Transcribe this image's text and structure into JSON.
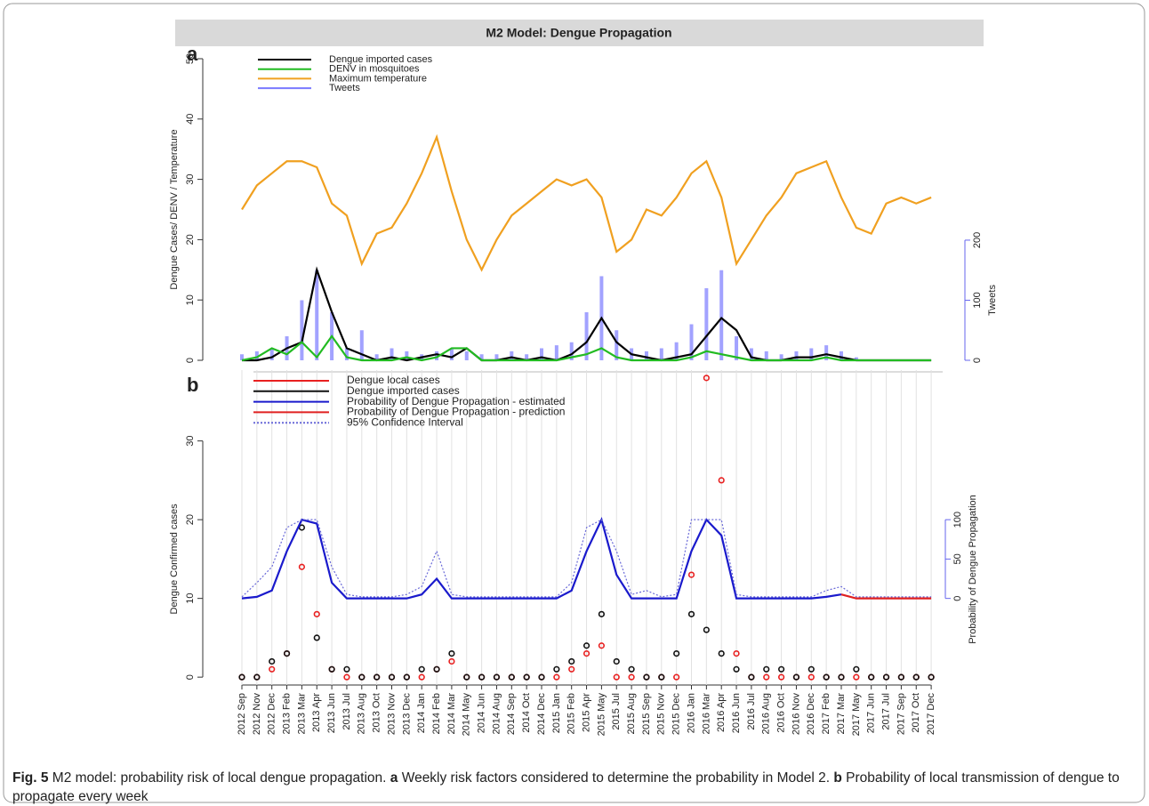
{
  "title": "M2 Model: Dengue Propagation",
  "caption": {
    "label": "Fig. 5",
    "title": "M2 model: probability risk of local dengue propagation.",
    "a": "a",
    "a_text": "Weekly risk factors considered to determine the probability in Model 2.",
    "b": "b",
    "b_text": "Probability of local transmission of dengue to propagate every week"
  },
  "chart_data": [
    {
      "type": "line",
      "label": "a",
      "ylabel": "Dengue Cases/ DENV / Temperature",
      "y2label": "Tweets",
      "ylim": [
        0,
        50
      ],
      "yticks": [
        0,
        10,
        20,
        30,
        40,
        50
      ],
      "y2lim": [
        0,
        502
      ],
      "y2ticks": [
        0,
        100,
        200
      ],
      "series": [
        {
          "name": "Dengue imported cases",
          "type": "line",
          "color": "#000000",
          "values": [
            0,
            0,
            0.5,
            2,
            3,
            15,
            8,
            2,
            1,
            0,
            0.5,
            0,
            0.5,
            1,
            0.5,
            2,
            0,
            0,
            0.5,
            0,
            0.5,
            0,
            1,
            3,
            7,
            3,
            1,
            0.5,
            0,
            0.5,
            1,
            4,
            7,
            5,
            0.5,
            0,
            0,
            0.5,
            0.5,
            1,
            0.5,
            0,
            0,
            0,
            0,
            0,
            0
          ]
        },
        {
          "name": "DENV in mosquitoes",
          "type": "line",
          "color": "#22bb22",
          "values": [
            0,
            0.5,
            2,
            1,
            3,
            0.5,
            4,
            0.5,
            0,
            0,
            0,
            0.5,
            0,
            0.5,
            2,
            2,
            0,
            0,
            0,
            0,
            0,
            0,
            0.5,
            1,
            2,
            0.5,
            0,
            0,
            0,
            0,
            0.5,
            1.5,
            1,
            0.5,
            0,
            0,
            0,
            0,
            0,
            0.5,
            0,
            0,
            0,
            0,
            0,
            0,
            0
          ]
        },
        {
          "name": "Maximum temperature",
          "type": "line",
          "color": "#f0a020",
          "values": [
            25,
            29,
            31,
            33,
            33,
            32,
            26,
            24,
            16,
            21,
            22,
            26,
            31,
            37,
            28,
            20,
            15,
            20,
            24,
            26,
            28,
            30,
            29,
            30,
            27,
            18,
            20,
            25,
            24,
            27,
            31,
            33,
            27,
            16,
            20,
            24,
            27,
            31,
            32,
            33,
            27,
            22,
            21,
            26,
            27,
            26,
            27
          ]
        },
        {
          "name": "Tweets",
          "type": "bar",
          "axis": "y2",
          "color": "#7a7aff",
          "values": [
            10,
            15,
            20,
            40,
            100,
            150,
            80,
            20,
            50,
            10,
            20,
            15,
            10,
            15,
            20,
            15,
            10,
            10,
            15,
            10,
            20,
            25,
            30,
            80,
            140,
            50,
            20,
            15,
            20,
            30,
            60,
            120,
            150,
            40,
            20,
            15,
            10,
            15,
            20,
            25,
            15,
            5,
            0,
            0,
            0,
            0,
            0
          ]
        }
      ]
    },
    {
      "type": "line",
      "label": "b",
      "ylabel": "Dengue Confirmed cases",
      "y2label": "Probability of Dengue Propagation",
      "ylim": [
        -1,
        39
      ],
      "yticks": [
        0,
        10,
        20,
        30
      ],
      "y2lim": [
        -110,
        290
      ],
      "y2ticks": [
        0,
        50,
        100
      ],
      "grid": true,
      "categories": [
        "2012 Sep",
        "2012 Nov",
        "2012 Dec",
        "2013 Feb",
        "2013 Mar",
        "2013 Apr",
        "2013 Jun",
        "2013 Jul",
        "2013 Aug",
        "2013 Oct",
        "2013 Nov",
        "2013 Dec",
        "2014 Jan",
        "2014 Feb",
        "2014 Mar",
        "2014 May",
        "2014 Jun",
        "2014 Aug",
        "2014 Sep",
        "2014 Oct",
        "2014 Dec",
        "2015 Jan",
        "2015 Feb",
        "2015 Apr",
        "2015 May",
        "2015 Jul",
        "2015 Aug",
        "2015 Sep",
        "2015 Nov",
        "2015 Dec",
        "2016 Jan",
        "2016 Mar",
        "2016 Apr",
        "2016 Jun",
        "2016 Jul",
        "2016 Aug",
        "2016 Oct",
        "2016 Nov",
        "2016 Dec",
        "2017 Feb",
        "2017 Mar",
        "2017 May",
        "2017 Jun",
        "2017 Jul",
        "2017 Sep",
        "2017 Oct",
        "2017 Dec"
      ],
      "series": [
        {
          "name": "Dengue local cases",
          "type": "points",
          "color": "#e82020",
          "values": [
            0,
            0,
            1,
            3,
            14,
            8,
            1,
            0,
            0,
            0,
            0,
            0,
            0,
            1,
            2,
            0,
            0,
            0,
            0,
            0,
            0,
            0,
            1,
            3,
            4,
            0,
            0,
            0,
            0,
            0,
            13,
            38,
            25,
            3,
            0,
            0,
            0,
            0,
            0,
            0,
            0,
            0,
            0,
            0,
            0,
            0,
            0
          ]
        },
        {
          "name": "Dengue imported cases",
          "type": "points",
          "color": "#111111",
          "values": [
            0,
            0,
            2,
            3,
            19,
            5,
            1,
            1,
            0,
            0,
            0,
            0,
            1,
            1,
            3,
            0,
            0,
            0,
            0,
            0,
            0,
            1,
            2,
            4,
            8,
            2,
            1,
            0,
            0,
            3,
            8,
            6,
            3,
            1,
            0,
            1,
            1,
            0,
            1,
            0,
            0,
            1,
            0,
            0,
            0,
            0,
            0
          ]
        },
        {
          "name": "Probability of Dengue Propagation - estimated",
          "type": "line",
          "axis": "y2",
          "color": "#1a1acc",
          "values": [
            0,
            2,
            10,
            60,
            100,
            95,
            20,
            0,
            0,
            0,
            0,
            0,
            5,
            25,
            0,
            0,
            0,
            0,
            0,
            0,
            0,
            0,
            10,
            60,
            100,
            30,
            0,
            0,
            0,
            0,
            60,
            100,
            80,
            0,
            0,
            0,
            0,
            0,
            0,
            2,
            5,
            null,
            null,
            null,
            null,
            null,
            null
          ]
        },
        {
          "name": "Probability of Dengue Propagation - prediction",
          "type": "line",
          "axis": "y2",
          "color": "#e02020",
          "values": [
            null,
            null,
            null,
            null,
            null,
            null,
            null,
            null,
            null,
            null,
            null,
            null,
            null,
            null,
            null,
            null,
            null,
            null,
            null,
            null,
            null,
            null,
            null,
            null,
            null,
            null,
            null,
            null,
            null,
            null,
            null,
            null,
            null,
            null,
            null,
            null,
            null,
            null,
            null,
            null,
            5,
            0,
            0,
            0,
            0,
            0,
            0
          ]
        },
        {
          "name": "95% Confidence Interval",
          "type": "line",
          "style": "dotted",
          "axis": "y2",
          "color": "#6a6ad8",
          "values": [
            2,
            20,
            40,
            90,
            100,
            100,
            40,
            5,
            2,
            2,
            2,
            5,
            15,
            60,
            5,
            2,
            2,
            2,
            2,
            2,
            2,
            2,
            20,
            90,
            100,
            60,
            5,
            10,
            2,
            5,
            100,
            100,
            100,
            5,
            2,
            2,
            2,
            2,
            2,
            10,
            15,
            2,
            2,
            2,
            2,
            2,
            2
          ]
        }
      ]
    }
  ]
}
